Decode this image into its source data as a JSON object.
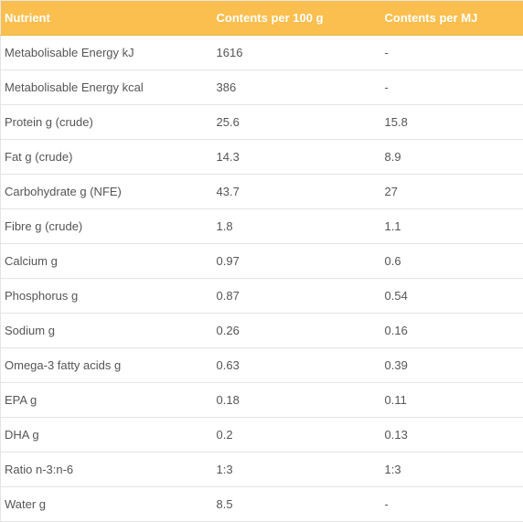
{
  "table": {
    "headers": [
      "Nutrient",
      "Contents per 100 g",
      "Contents per MJ"
    ],
    "rows": [
      [
        "Metabolisable Energy kJ",
        "1616",
        "-"
      ],
      [
        "Metabolisable Energy kcal",
        "386",
        "-"
      ],
      [
        "Protein g (crude)",
        "25.6",
        "15.8"
      ],
      [
        "Fat g (crude)",
        "14.3",
        "8.9"
      ],
      [
        "Carbohydrate g (NFE)",
        "43.7",
        "27"
      ],
      [
        "Fibre g (crude)",
        "1.8",
        "1.1"
      ],
      [
        "Calcium g",
        "0.97",
        "0.6"
      ],
      [
        "Phosphorus g",
        "0.87",
        "0.54"
      ],
      [
        "Sodium g",
        "0.26",
        "0.16"
      ],
      [
        "Omega-3 fatty acids g",
        "0.63",
        "0.39"
      ],
      [
        "EPA g",
        "0.18",
        "0.11"
      ],
      [
        "DHA g",
        "0.2",
        "0.13"
      ],
      [
        "Ratio n-3:n-6",
        "1:3",
        "1:3"
      ],
      [
        "Water g",
        "8.5",
        "-"
      ]
    ]
  }
}
